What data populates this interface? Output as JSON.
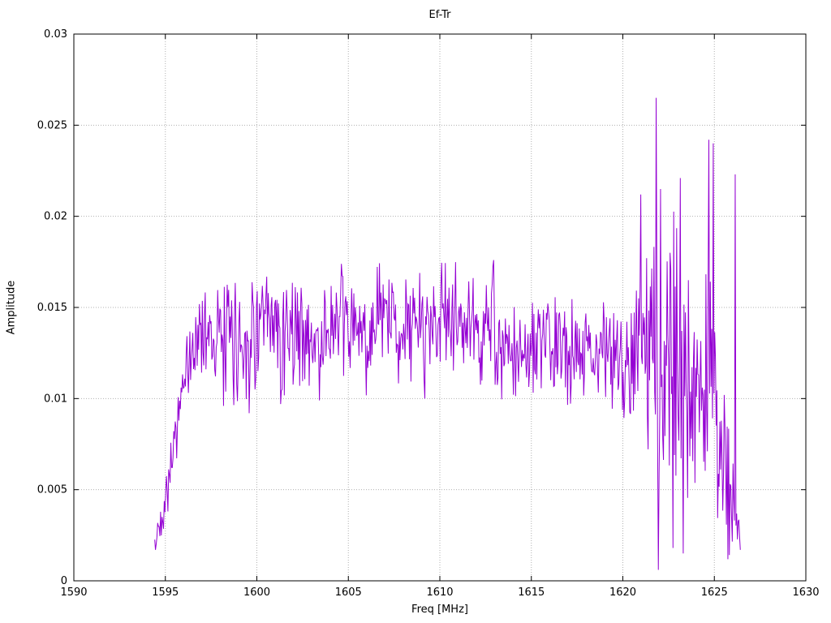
{
  "chart_data": {
    "type": "line",
    "title": "Ef-Tr",
    "xlabel": "Freq [MHz]",
    "ylabel": "Amplitude",
    "xlim": [
      1590,
      1630
    ],
    "ylim": [
      0,
      0.03
    ],
    "xticks": [
      1590,
      1595,
      1600,
      1605,
      1610,
      1615,
      1620,
      1625,
      1630
    ],
    "xtick_labels": [
      "1590",
      "1595",
      "1600",
      "1605",
      "1610",
      "1615",
      "1620",
      "1625",
      "1630"
    ],
    "yticks": [
      0,
      0.005,
      0.01,
      0.015,
      0.02,
      0.025,
      0.03
    ],
    "ytick_labels": [
      "0",
      "0.005",
      "0.01",
      "0.015",
      "0.02",
      "0.025",
      "0.03"
    ],
    "grid": true,
    "legend": "none",
    "grid_color": "#b0b0b0",
    "axis_color": "#000000",
    "series": [
      {
        "name": "Ef-Tr",
        "color": "#9400d3",
        "x_start": 1594.42,
        "x_end": 1626.45,
        "sample_step": 0.04,
        "noise_seed": 42,
        "envelope": [
          [
            1594.42,
            0.0022,
            0.0008
          ],
          [
            1594.7,
            0.003,
            0.0012
          ],
          [
            1595.0,
            0.0048,
            0.0014
          ],
          [
            1595.3,
            0.0065,
            0.0012
          ],
          [
            1595.7,
            0.009,
            0.0014
          ],
          [
            1596.1,
            0.0112,
            0.0014
          ],
          [
            1596.5,
            0.0125,
            0.0018
          ],
          [
            1597.0,
            0.014,
            0.0022
          ],
          [
            1598.0,
            0.0135,
            0.0026
          ],
          [
            1599.0,
            0.013,
            0.0026
          ],
          [
            1600.0,
            0.0138,
            0.0026
          ],
          [
            1601.0,
            0.0135,
            0.0028
          ],
          [
            1602.0,
            0.014,
            0.0026
          ],
          [
            1603.0,
            0.013,
            0.0024
          ],
          [
            1604.0,
            0.0138,
            0.0024
          ],
          [
            1605.0,
            0.014,
            0.0024
          ],
          [
            1606.0,
            0.0132,
            0.0024
          ],
          [
            1607.0,
            0.0145,
            0.0026
          ],
          [
            1608.0,
            0.0138,
            0.0024
          ],
          [
            1609.0,
            0.014,
            0.0026
          ],
          [
            1610.0,
            0.0145,
            0.0024
          ],
          [
            1611.0,
            0.0142,
            0.0024
          ],
          [
            1612.0,
            0.0135,
            0.0024
          ],
          [
            1612.9,
            0.014,
            0.0028
          ],
          [
            1613.3,
            0.0122,
            0.0022
          ],
          [
            1614.0,
            0.0122,
            0.002
          ],
          [
            1615.0,
            0.0128,
            0.002
          ],
          [
            1616.0,
            0.0128,
            0.002
          ],
          [
            1617.0,
            0.0126,
            0.0022
          ],
          [
            1618.0,
            0.013,
            0.0022
          ],
          [
            1619.0,
            0.0124,
            0.0022
          ],
          [
            1620.0,
            0.0122,
            0.0024
          ],
          [
            1620.8,
            0.013,
            0.0035
          ],
          [
            1621.5,
            0.0125,
            0.005
          ],
          [
            1622.2,
            0.012,
            0.006
          ],
          [
            1623.0,
            0.0125,
            0.006
          ],
          [
            1623.8,
            0.0105,
            0.005
          ],
          [
            1624.5,
            0.01,
            0.0055
          ],
          [
            1625.2,
            0.0105,
            0.0065
          ],
          [
            1625.6,
            0.006,
            0.004
          ],
          [
            1626.0,
            0.0035,
            0.0022
          ],
          [
            1626.45,
            0.002,
            0.0008
          ]
        ],
        "spikes": [
          [
            1594.45,
            0.0017
          ],
          [
            1598.2,
            0.0096
          ],
          [
            1599.6,
            0.0092
          ],
          [
            1601.3,
            0.0097
          ],
          [
            1603.4,
            0.0099
          ],
          [
            1609.2,
            0.01
          ],
          [
            1612.95,
            0.0176
          ],
          [
            1621.0,
            0.0212
          ],
          [
            1621.82,
            0.0265
          ],
          [
            1621.95,
            0.0006
          ],
          [
            1622.05,
            0.0215
          ],
          [
            1622.6,
            0.018
          ],
          [
            1622.75,
            0.0018
          ],
          [
            1623.15,
            0.0221
          ],
          [
            1623.3,
            0.0015
          ],
          [
            1624.7,
            0.0242
          ],
          [
            1624.95,
            0.024
          ],
          [
            1626.15,
            0.0223
          ],
          [
            1626.4,
            0.0017
          ]
        ]
      }
    ]
  }
}
